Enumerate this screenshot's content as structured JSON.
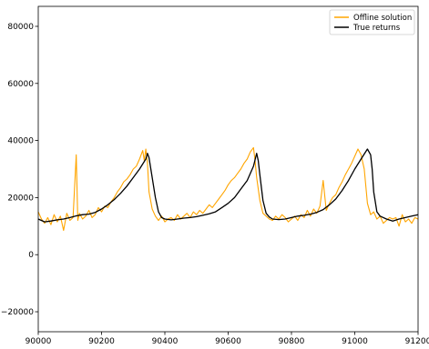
{
  "chart_data": {
    "type": "line",
    "title": "",
    "xlabel": "",
    "ylabel": "",
    "xlim": [
      90000,
      91200
    ],
    "ylim": [
      -27000,
      87000
    ],
    "x_ticks": [
      90000,
      90200,
      90400,
      90600,
      90800,
      91000,
      91200
    ],
    "y_ticks": [
      -20000,
      0,
      20000,
      40000,
      60000,
      80000
    ],
    "grid": false,
    "legend_position": "top-right",
    "series": [
      {
        "name": "Offline solution",
        "color": "#ffa500",
        "x": [
          90000,
          90010,
          90020,
          90030,
          90040,
          90050,
          90060,
          90070,
          90080,
          90090,
          90100,
          90110,
          90120,
          90125,
          90130,
          90140,
          90150,
          90160,
          90170,
          90180,
          90190,
          90200,
          90210,
          90220,
          90230,
          90240,
          90250,
          90260,
          90270,
          90280,
          90290,
          90300,
          90310,
          90320,
          90330,
          90335,
          90340,
          90345,
          90350,
          90360,
          90370,
          90380,
          90390,
          90400,
          90410,
          90420,
          90430,
          90440,
          90450,
          90460,
          90470,
          90480,
          90490,
          90500,
          90510,
          90520,
          90530,
          90540,
          90550,
          90560,
          90570,
          90580,
          90590,
          90600,
          90610,
          90620,
          90630,
          90640,
          90650,
          90660,
          90670,
          90680,
          90685,
          90690,
          90700,
          90710,
          90720,
          90730,
          90740,
          90750,
          90760,
          90770,
          90780,
          90790,
          90800,
          90810,
          90820,
          90830,
          90840,
          90850,
          90860,
          90870,
          90880,
          90890,
          90900,
          90910,
          90920,
          90930,
          90940,
          90950,
          90960,
          90970,
          90980,
          90990,
          91000,
          91010,
          91020,
          91030,
          91040,
          91050,
          91060,
          91070,
          91080,
          91090,
          91100,
          91110,
          91120,
          91130,
          91140,
          91150,
          91160,
          91170,
          91180,
          91190,
          91200
        ],
        "values": [
          15000,
          12500,
          11000,
          13000,
          10500,
          14000,
          11500,
          13500,
          8500,
          14500,
          12000,
          13000,
          35000,
          12000,
          14500,
          12500,
          13500,
          15500,
          13000,
          14000,
          16500,
          15000,
          17000,
          16500,
          18500,
          20000,
          22000,
          23500,
          25500,
          26500,
          28000,
          30000,
          31000,
          33500,
          36500,
          33000,
          37000,
          32000,
          22000,
          16000,
          13500,
          12000,
          13500,
          11500,
          12500,
          13000,
          12000,
          14000,
          12500,
          13500,
          14500,
          13000,
          15000,
          14000,
          15500,
          14500,
          16000,
          17500,
          16500,
          18000,
          19500,
          21000,
          22500,
          24500,
          26000,
          27000,
          28500,
          30000,
          32000,
          33500,
          36000,
          37500,
          33000,
          27000,
          19000,
          14500,
          13500,
          12500,
          12000,
          13500,
          12500,
          14000,
          13000,
          11500,
          12500,
          13500,
          12000,
          14000,
          13000,
          15500,
          13500,
          16000,
          14500,
          17000,
          26000,
          15500,
          18000,
          20000,
          21000,
          23500,
          25500,
          28000,
          30000,
          32000,
          34500,
          37000,
          35000,
          30000,
          18000,
          14000,
          15000,
          12500,
          13500,
          11000,
          12000,
          13000,
          12500,
          13000,
          10000,
          14000,
          11500,
          12500,
          11000,
          13000,
          12500
        ]
      },
      {
        "name": "True returns",
        "color": "#000000",
        "x": [
          90000,
          90020,
          90040,
          90060,
          90080,
          90100,
          90120,
          90140,
          90160,
          90180,
          90200,
          90220,
          90240,
          90260,
          90280,
          90300,
          90320,
          90340,
          90345,
          90350,
          90360,
          90370,
          90380,
          90390,
          90400,
          90420,
          90440,
          90460,
          90480,
          90500,
          90520,
          90540,
          90560,
          90580,
          90600,
          90620,
          90640,
          90660,
          90680,
          90690,
          90695,
          90700,
          90710,
          90720,
          90730,
          90740,
          90760,
          90780,
          90800,
          90820,
          90840,
          90860,
          90880,
          90900,
          90920,
          90940,
          90960,
          90980,
          91000,
          91020,
          91040,
          91050,
          91055,
          91060,
          91070,
          91080,
          91100,
          91120,
          91140,
          91160,
          91180,
          91200
        ],
        "values": [
          12500,
          11500,
          11800,
          12200,
          12500,
          13000,
          13600,
          14000,
          14200,
          14800,
          16000,
          17500,
          19300,
          21500,
          24000,
          27000,
          30000,
          33500,
          35500,
          34000,
          27000,
          20000,
          15000,
          13000,
          12500,
          12200,
          12500,
          12800,
          13000,
          13300,
          13800,
          14300,
          15000,
          16500,
          18000,
          20000,
          23000,
          26000,
          31000,
          35500,
          33000,
          28000,
          19000,
          14500,
          13200,
          12500,
          12300,
          12500,
          13000,
          13500,
          13800,
          14200,
          14800,
          15800,
          17500,
          19500,
          22500,
          26000,
          30000,
          33500,
          37000,
          35000,
          30000,
          22000,
          15000,
          13500,
          12500,
          11800,
          12500,
          13000,
          13500,
          14000
        ]
      }
    ]
  }
}
